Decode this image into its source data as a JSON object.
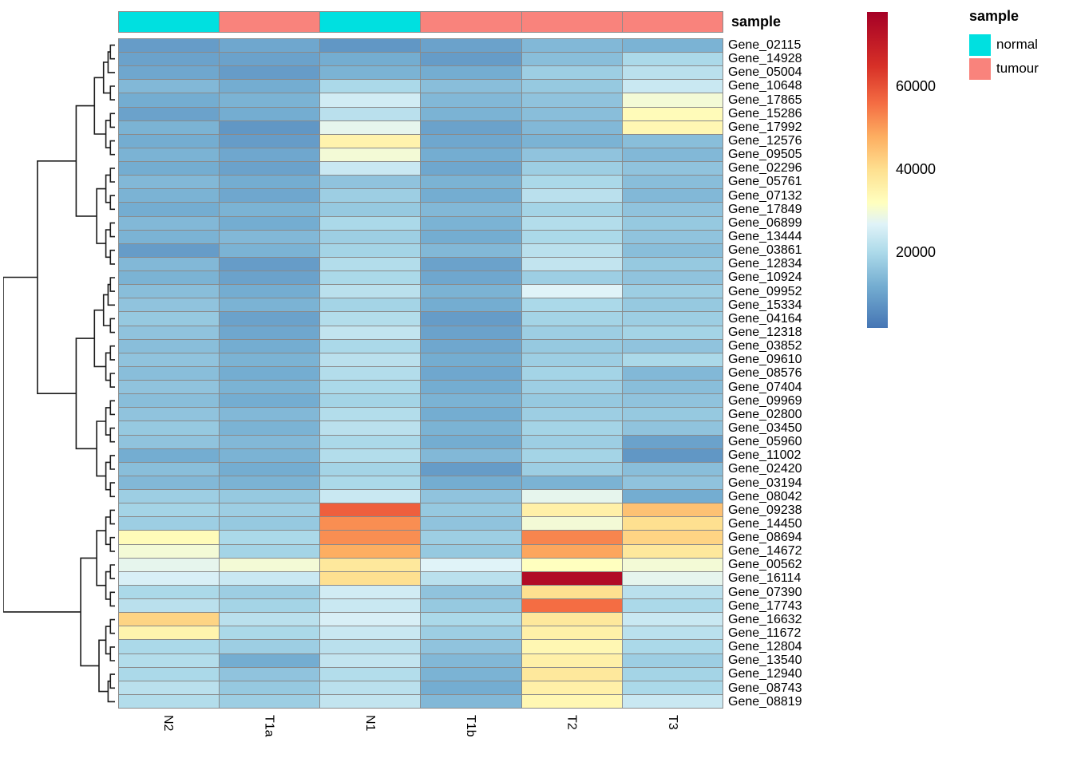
{
  "chart_data": {
    "type": "heatmap",
    "title": "",
    "columns": [
      "N2",
      "T1a",
      "N1",
      "T1b",
      "T2",
      "T3"
    ],
    "column_annotation": {
      "title": "sample",
      "values": [
        "normal",
        "tumour",
        "normal",
        "tumour",
        "tumour",
        "tumour"
      ]
    },
    "rows": [
      "Gene_02115",
      "Gene_14928",
      "Gene_05004",
      "Gene_10648",
      "Gene_17865",
      "Gene_15286",
      "Gene_17992",
      "Gene_12576",
      "Gene_09505",
      "Gene_02296",
      "Gene_05761",
      "Gene_07132",
      "Gene_17849",
      "Gene_06899",
      "Gene_13444",
      "Gene_03861",
      "Gene_12834",
      "Gene_10924",
      "Gene_09952",
      "Gene_15334",
      "Gene_04164",
      "Gene_12318",
      "Gene_03852",
      "Gene_09610",
      "Gene_08576",
      "Gene_07404",
      "Gene_09969",
      "Gene_02800",
      "Gene_03450",
      "Gene_05960",
      "Gene_11002",
      "Gene_02420",
      "Gene_03194",
      "Gene_08042",
      "Gene_09238",
      "Gene_14450",
      "Gene_08694",
      "Gene_14672",
      "Gene_00562",
      "Gene_16114",
      "Gene_07390",
      "Gene_17743",
      "Gene_16632",
      "Gene_11672",
      "Gene_12804",
      "Gene_13540",
      "Gene_12940",
      "Gene_08743",
      "Gene_08819"
    ],
    "values": [
      [
        9000,
        11000,
        8000,
        10000,
        14000,
        13000
      ],
      [
        10000,
        10000,
        12000,
        9000,
        15000,
        20000
      ],
      [
        11000,
        9000,
        13000,
        12000,
        18000,
        22000
      ],
      [
        14000,
        12000,
        20000,
        15000,
        17000,
        24000
      ],
      [
        12000,
        13000,
        25000,
        14000,
        16000,
        30000
      ],
      [
        10000,
        12000,
        22000,
        13000,
        15000,
        33000
      ],
      [
        13000,
        8000,
        28000,
        10000,
        14000,
        34000
      ],
      [
        12000,
        9000,
        35000,
        11000,
        13000,
        15000
      ],
      [
        13000,
        11000,
        30000,
        12000,
        16000,
        14000
      ],
      [
        12000,
        10000,
        24000,
        11000,
        18000,
        16000
      ],
      [
        14000,
        12000,
        16000,
        13000,
        20000,
        15000
      ],
      [
        13000,
        11000,
        18000,
        12000,
        22000,
        14000
      ],
      [
        12000,
        13000,
        17000,
        14000,
        19000,
        16000
      ],
      [
        14000,
        12000,
        20000,
        13000,
        21000,
        17000
      ],
      [
        13000,
        14000,
        18000,
        12000,
        20000,
        16000
      ],
      [
        9000,
        13000,
        19000,
        14000,
        22000,
        15000
      ],
      [
        14000,
        9000,
        21000,
        10000,
        23000,
        17000
      ],
      [
        13000,
        10000,
        20000,
        11000,
        18000,
        16000
      ],
      [
        15000,
        12000,
        22000,
        13000,
        27000,
        18000
      ],
      [
        16000,
        13000,
        19000,
        12000,
        20000,
        17000
      ],
      [
        17000,
        10000,
        21000,
        9000,
        19000,
        18000
      ],
      [
        16000,
        11000,
        23000,
        10000,
        18000,
        19000
      ],
      [
        15000,
        12000,
        20000,
        11000,
        17000,
        16000
      ],
      [
        16000,
        13000,
        22000,
        12000,
        18000,
        20000
      ],
      [
        15000,
        12000,
        21000,
        11000,
        19000,
        14000
      ],
      [
        16000,
        13000,
        20000,
        12000,
        18000,
        15000
      ],
      [
        15000,
        12000,
        19000,
        13000,
        17000,
        16000
      ],
      [
        16000,
        14000,
        21000,
        12000,
        18000,
        17000
      ],
      [
        17000,
        13000,
        22000,
        13000,
        19000,
        16000
      ],
      [
        16000,
        14000,
        20000,
        12000,
        18000,
        10000
      ],
      [
        12000,
        13000,
        21000,
        14000,
        19000,
        8000
      ],
      [
        15000,
        12000,
        19000,
        9000,
        18000,
        15000
      ],
      [
        14000,
        13000,
        20000,
        12000,
        13000,
        16000
      ],
      [
        18000,
        17000,
        24000,
        16000,
        28000,
        12000
      ],
      [
        19000,
        18000,
        58000,
        17000,
        36000,
        45000
      ],
      [
        18000,
        17000,
        52000,
        16000,
        30000,
        40000
      ],
      [
        33000,
        20000,
        52000,
        18000,
        53000,
        42000
      ],
      [
        30000,
        19000,
        48000,
        17000,
        49000,
        38000
      ],
      [
        28000,
        30000,
        38000,
        27000,
        32000,
        30000
      ],
      [
        26000,
        24000,
        40000,
        22000,
        75000,
        28000
      ],
      [
        20000,
        18000,
        25000,
        16000,
        40000,
        22000
      ],
      [
        22000,
        19000,
        24000,
        17000,
        56000,
        20000
      ],
      [
        42000,
        22000,
        26000,
        20000,
        38000,
        24000
      ],
      [
        35000,
        20000,
        24000,
        18000,
        36000,
        22000
      ],
      [
        20000,
        18000,
        22000,
        16000,
        34000,
        20000
      ],
      [
        21000,
        12000,
        23000,
        14000,
        36000,
        18000
      ],
      [
        20000,
        16000,
        21000,
        13000,
        38000,
        19000
      ],
      [
        22000,
        17000,
        22000,
        12000,
        36000,
        20000
      ],
      [
        21000,
        18000,
        23000,
        14000,
        34000,
        24000
      ]
    ],
    "colorscale": {
      "domain": [
        2000,
        78000
      ],
      "ticks": [
        "20000",
        "40000",
        "60000"
      ],
      "tick_values": [
        20000,
        40000,
        60000
      ],
      "stops": [
        {
          "value": 2000,
          "color": "#4575b4"
        },
        {
          "value": 12000,
          "color": "#74add1"
        },
        {
          "value": 20000,
          "color": "#abd9e9"
        },
        {
          "value": 27000,
          "color": "#e0f3f8"
        },
        {
          "value": 32000,
          "color": "#ffffbf"
        },
        {
          "value": 40000,
          "color": "#fee090"
        },
        {
          "value": 48000,
          "color": "#fdae61"
        },
        {
          "value": 56000,
          "color": "#f46d43"
        },
        {
          "value": 65000,
          "color": "#d73027"
        },
        {
          "value": 78000,
          "color": "#a50026"
        }
      ]
    },
    "legend": {
      "title": "sample",
      "entries": [
        {
          "label": "normal",
          "color": "#00e0e0"
        },
        {
          "label": "tumour",
          "color": "#f9837c"
        }
      ]
    },
    "layout": {
      "grid_line_color": "#8a8a8a",
      "dendrogram_color": "#1a1a1a",
      "legend_position": "right"
    }
  }
}
